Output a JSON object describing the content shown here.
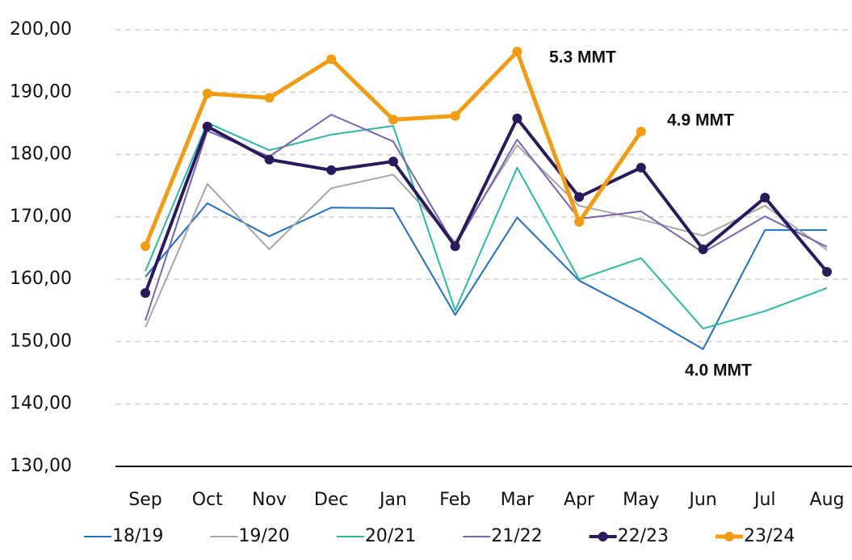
{
  "chart_data": {
    "type": "line",
    "categories": [
      "Sep",
      "Oct",
      "Nov",
      "Dec",
      "Jan",
      "Feb",
      "Mar",
      "Apr",
      "May",
      "Jun",
      "Jul",
      "Aug"
    ],
    "series": [
      {
        "name": "18/19",
        "color": "#1f6fc5",
        "values": [
          160.4,
          172.2,
          166.9,
          171.5,
          171.4,
          154.3,
          169.9,
          159.8,
          154.6,
          148.8,
          167.9,
          167.9
        ]
      },
      {
        "name": "19/20",
        "color": "#a6a6a6",
        "values": [
          152.3,
          175.3,
          164.8,
          174.6,
          176.8,
          166.0,
          181.5,
          171.8,
          169.6,
          167.0,
          171.8,
          164.7
        ]
      },
      {
        "name": "20/21",
        "color": "#2bb9a0",
        "values": [
          161.3,
          185.1,
          180.7,
          183.2,
          184.6,
          155.0,
          177.9,
          160.0,
          163.4,
          152.1,
          154.9,
          158.6
        ]
      },
      {
        "name": "21/22",
        "color": "#7b61b0",
        "values": [
          153.4,
          183.8,
          179.7,
          186.4,
          182.1,
          165.3,
          182.4,
          169.7,
          170.9,
          164.3,
          170.1,
          165.2
        ]
      },
      {
        "name": "22/23",
        "color": "#2a1a5c",
        "values": [
          157.8,
          184.5,
          179.2,
          177.5,
          178.9,
          165.3,
          185.8,
          173.2,
          177.9,
          164.8,
          173.1,
          161.2
        ]
      },
      {
        "name": "23/24",
        "color": "#f39c12",
        "values": [
          165.3,
          189.8,
          189.1,
          195.3,
          185.6,
          186.2,
          196.5,
          169.2,
          183.7,
          null,
          null,
          null
        ]
      }
    ],
    "ylim": [
      130,
      200
    ],
    "yticks": [
      {
        "value": 130,
        "label": "130,00"
      },
      {
        "value": 140,
        "label": "140,00"
      },
      {
        "value": 150,
        "label": "150,00"
      },
      {
        "value": 160,
        "label": "160,00"
      },
      {
        "value": 170,
        "label": "170,00"
      },
      {
        "value": 180,
        "label": "180,00"
      },
      {
        "value": 190,
        "label": "190,00"
      },
      {
        "value": 200,
        "label": "200,00"
      }
    ],
    "grid": true,
    "legend": "bottom",
    "annotations": [
      "5.3 MMT",
      "4.9 MMT",
      "4.0 MMT"
    ]
  }
}
